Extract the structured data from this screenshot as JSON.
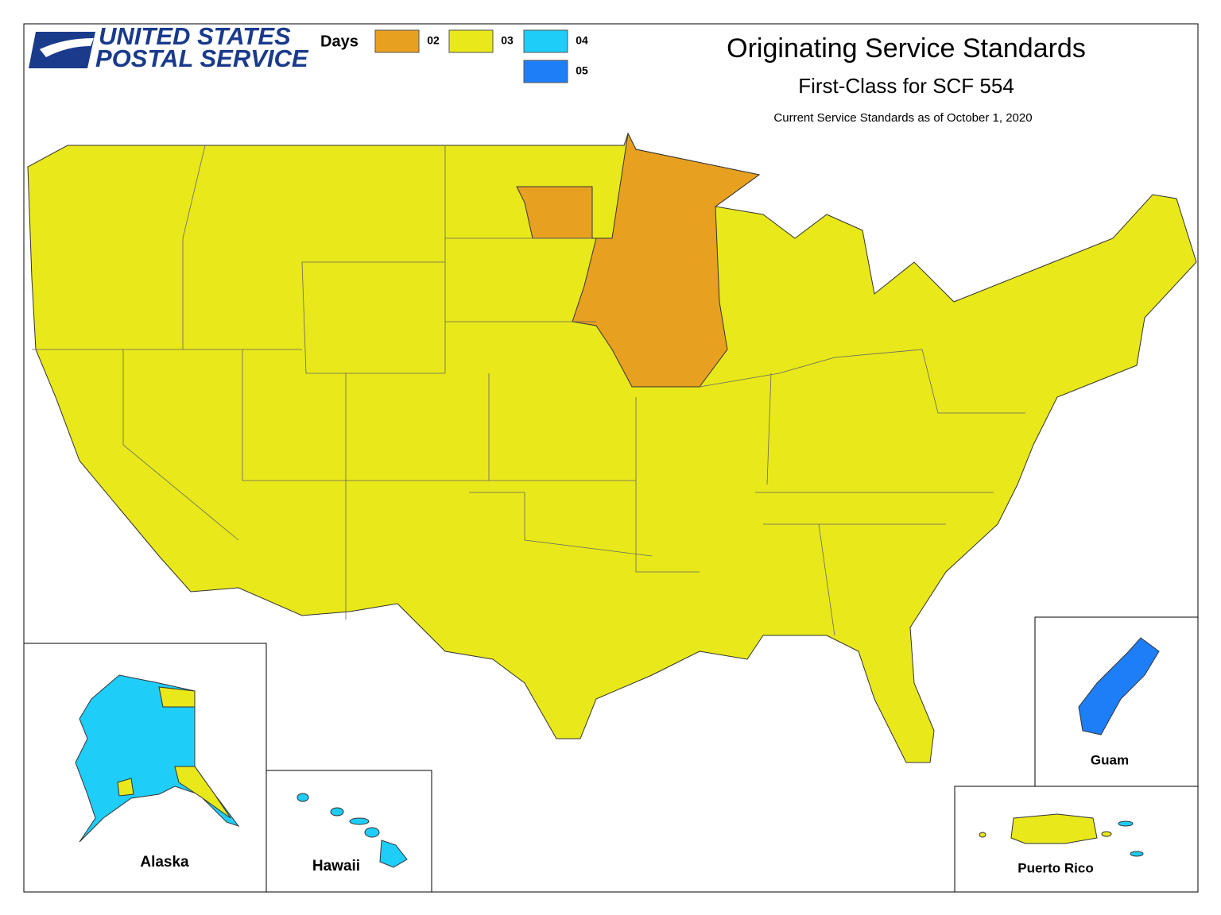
{
  "logo": {
    "line1": "UNITED STATES",
    "line2": "POSTAL SERVICE"
  },
  "legend": {
    "title": "Days",
    "items": [
      {
        "label": "02",
        "color": "#e8a020"
      },
      {
        "label": "03",
        "color": "#e8e81a"
      },
      {
        "label": "04",
        "color": "#1ecdf8"
      },
      {
        "label": "05",
        "color": "#1e7ef8"
      }
    ]
  },
  "header": {
    "title": "Originating Service Standards",
    "subtitle": "First-Class for SCF 554",
    "note": "Current Service Standards as of October 1, 2020"
  },
  "insets": {
    "alaska": "Alaska",
    "hawaii": "Hawaii",
    "guam": "Guam",
    "puerto_rico": "Puerto Rico"
  }
}
